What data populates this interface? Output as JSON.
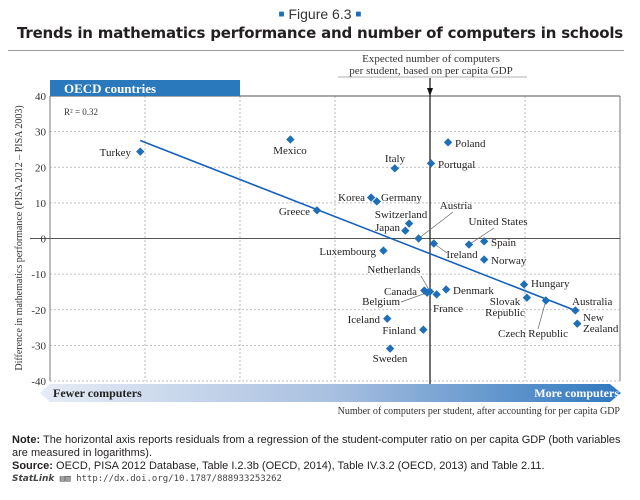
{
  "figure_label": "Figure 6.3",
  "title": "Trends in mathematics performance and number of computers in schools",
  "note_label": "Note:",
  "note_text": "The horizontal axis reports residuals from a regression of the student-computer ratio on per capita GDP (both variables are measured in logarithms).",
  "source_label": "Source:",
  "source_text": "OECD, PISA 2012 Database, Table I.2.3b (OECD, 2014), Table IV.3.2 (OECD, 2013) and Table 2.11.",
  "statlink_label": "StatLink",
  "statlink_url": "http://dx.doi.org/10.1787/888933253262",
  "chart_data": {
    "type": "scatter",
    "panel_label": "OECD countries",
    "r_squared_label": "R² = 0.32",
    "ylabel": "Difference in mathematics performance (PISA 2012 – PISA 2003)",
    "xlabel": "Number of computers per student, after accounting for per capita GDP",
    "x_left_label": "Fewer computers",
    "x_right_label": "More computers",
    "reference_line_label": [
      "Expected number of computers",
      "per student, based on per capita GDP"
    ],
    "reference_line_x": 0,
    "ylim": [
      -40,
      40
    ],
    "xlim": [
      -4,
      2
    ],
    "yticks": [
      40,
      30,
      20,
      10,
      0,
      -10,
      -20,
      -30,
      -40
    ],
    "grid": true,
    "colors": {
      "points": "#1f6fb8",
      "trend": "#1560bd",
      "panel": "#2a79bd"
    },
    "trendline": {
      "x": [
        -3.05,
        1.53
      ],
      "y": [
        27.5,
        -20.2
      ]
    },
    "points": [
      {
        "name": "Turkey",
        "x": -3.05,
        "y": 24.4
      },
      {
        "name": "Mexico",
        "x": -1.47,
        "y": 27.8
      },
      {
        "name": "Poland",
        "x": 0.19,
        "y": 27.0
      },
      {
        "name": "Italy",
        "x": -0.37,
        "y": 19.7
      },
      {
        "name": "Portugal",
        "x": 0.01,
        "y": 21.1
      },
      {
        "name": "Korea",
        "x": -0.62,
        "y": 11.5
      },
      {
        "name": "Germany",
        "x": -0.56,
        "y": 10.4
      },
      {
        "name": "Greece",
        "x": -1.19,
        "y": 7.9
      },
      {
        "name": "Switzerland",
        "x": -0.22,
        "y": 4.2
      },
      {
        "name": "Japan",
        "x": -0.26,
        "y": 2.2
      },
      {
        "name": "Austria",
        "x": -0.12,
        "y": 0.0
      },
      {
        "name": "Ireland",
        "x": 0.04,
        "y": -1.4
      },
      {
        "name": "United States",
        "x": 0.41,
        "y": -1.7
      },
      {
        "name": "Spain",
        "x": 0.57,
        "y": -0.8
      },
      {
        "name": "Norway",
        "x": 0.57,
        "y": -5.9
      },
      {
        "name": "Luxembourg",
        "x": -0.49,
        "y": -3.4
      },
      {
        "name": "Netherlands",
        "x": 0.0,
        "y": -14.9
      },
      {
        "name": "Canada",
        "x": -0.06,
        "y": -14.6
      },
      {
        "name": "Belgium",
        "x": -0.03,
        "y": -15.2
      },
      {
        "name": "France",
        "x": 0.07,
        "y": -15.7
      },
      {
        "name": "Denmark",
        "x": 0.17,
        "y": -14.3
      },
      {
        "name": "Iceland",
        "x": -0.45,
        "y": -22.5
      },
      {
        "name": "Finland",
        "x": -0.07,
        "y": -25.6
      },
      {
        "name": "Sweden",
        "x": -0.42,
        "y": -30.9
      },
      {
        "name": "Hungary",
        "x": 0.99,
        "y": -12.9
      },
      {
        "name": "Slovak Republic",
        "x": 1.02,
        "y": -16.6
      },
      {
        "name": "Czech Republic",
        "x": 1.22,
        "y": -17.4
      },
      {
        "name": "Australia",
        "x": 1.53,
        "y": -20.2
      },
      {
        "name": "New Zealand",
        "x": 1.55,
        "y": -23.9
      }
    ]
  }
}
